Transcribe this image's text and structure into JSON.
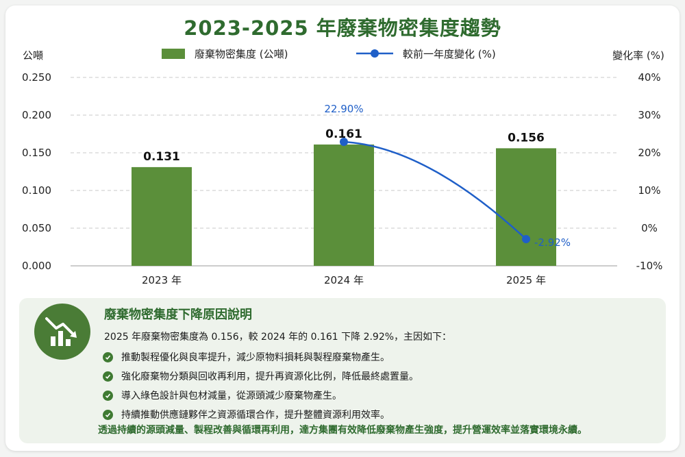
{
  "title": "2023-2025 年廢棄物密集度趨勢",
  "colors": {
    "bar": "#5b8f3a",
    "line": "#1f5fc8",
    "title": "#2f6b2f",
    "panel": "#eef3ec"
  },
  "chart_data": {
    "type": "bar",
    "categories": [
      "2023 年",
      "2024 年",
      "2025 年"
    ],
    "series": [
      {
        "name": "廢棄物密集度 (公噸)",
        "type": "bar",
        "axis": "left",
        "values": [
          0.131,
          0.161,
          0.156
        ],
        "labels": [
          "0.131",
          "0.161",
          "0.156"
        ]
      },
      {
        "name": "較前一年度變化 (%)",
        "type": "line",
        "axis": "right",
        "values": [
          null,
          22.9,
          -2.92
        ],
        "labels": [
          "",
          "22.90%",
          "-2.92%"
        ]
      }
    ],
    "ylabel_left": "公噸",
    "ylabel_right": "變化率 (%)",
    "ylim_left": [
      0,
      0.25
    ],
    "ylim_right": [
      -10,
      40
    ],
    "yticks_left": [
      "0.000",
      "0.050",
      "0.100",
      "0.150",
      "0.200",
      "0.250"
    ],
    "yticks_right": [
      "-10%",
      "0%",
      "10%",
      "20%",
      "30%",
      "40%"
    ],
    "grid": true,
    "legend_position": "top"
  },
  "info": {
    "icon": "chart-down-icon",
    "title": "廢棄物密集度下降原因說明",
    "lead": "2025 年廢棄物密集度為 0.156，較 2024 年的 0.161 下降 2.92%，主因如下：",
    "reasons": [
      "推動製程優化與良率提升，減少原物料損耗與製程廢棄物產生。",
      "強化廢棄物分類與回收再利用，提升再資源化比例，降低最終處置量。",
      "導入綠色設計與包材減量，從源頭減少廢棄物產生。",
      "持續推動供應鏈夥伴之資源循環合作，提升整體資源利用效率。"
    ],
    "footer": "透過持續的源頭減量、製程改善與循環再利用，達方集團有效降低廢棄物產生強度，提升營運效率並落實環境永續。"
  }
}
